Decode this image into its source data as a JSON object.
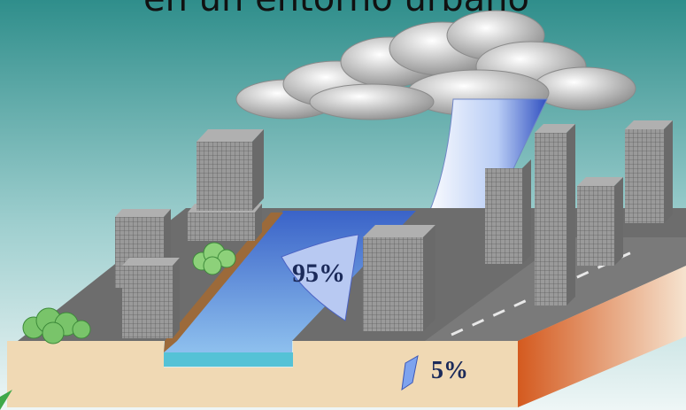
{
  "title": "en un entorno urbano",
  "labels": {
    "runoff_percent": "95%",
    "infiltration_percent": "5%"
  },
  "colors": {
    "sky_top": "#2f8e8b",
    "sky_bottom": "#e9f3f3",
    "water": "#4f86d8",
    "soil": "#f0d9b4",
    "soil_edge": "#c8562a",
    "ground": "#6c6c6c",
    "building": "#8d8d8d"
  }
}
